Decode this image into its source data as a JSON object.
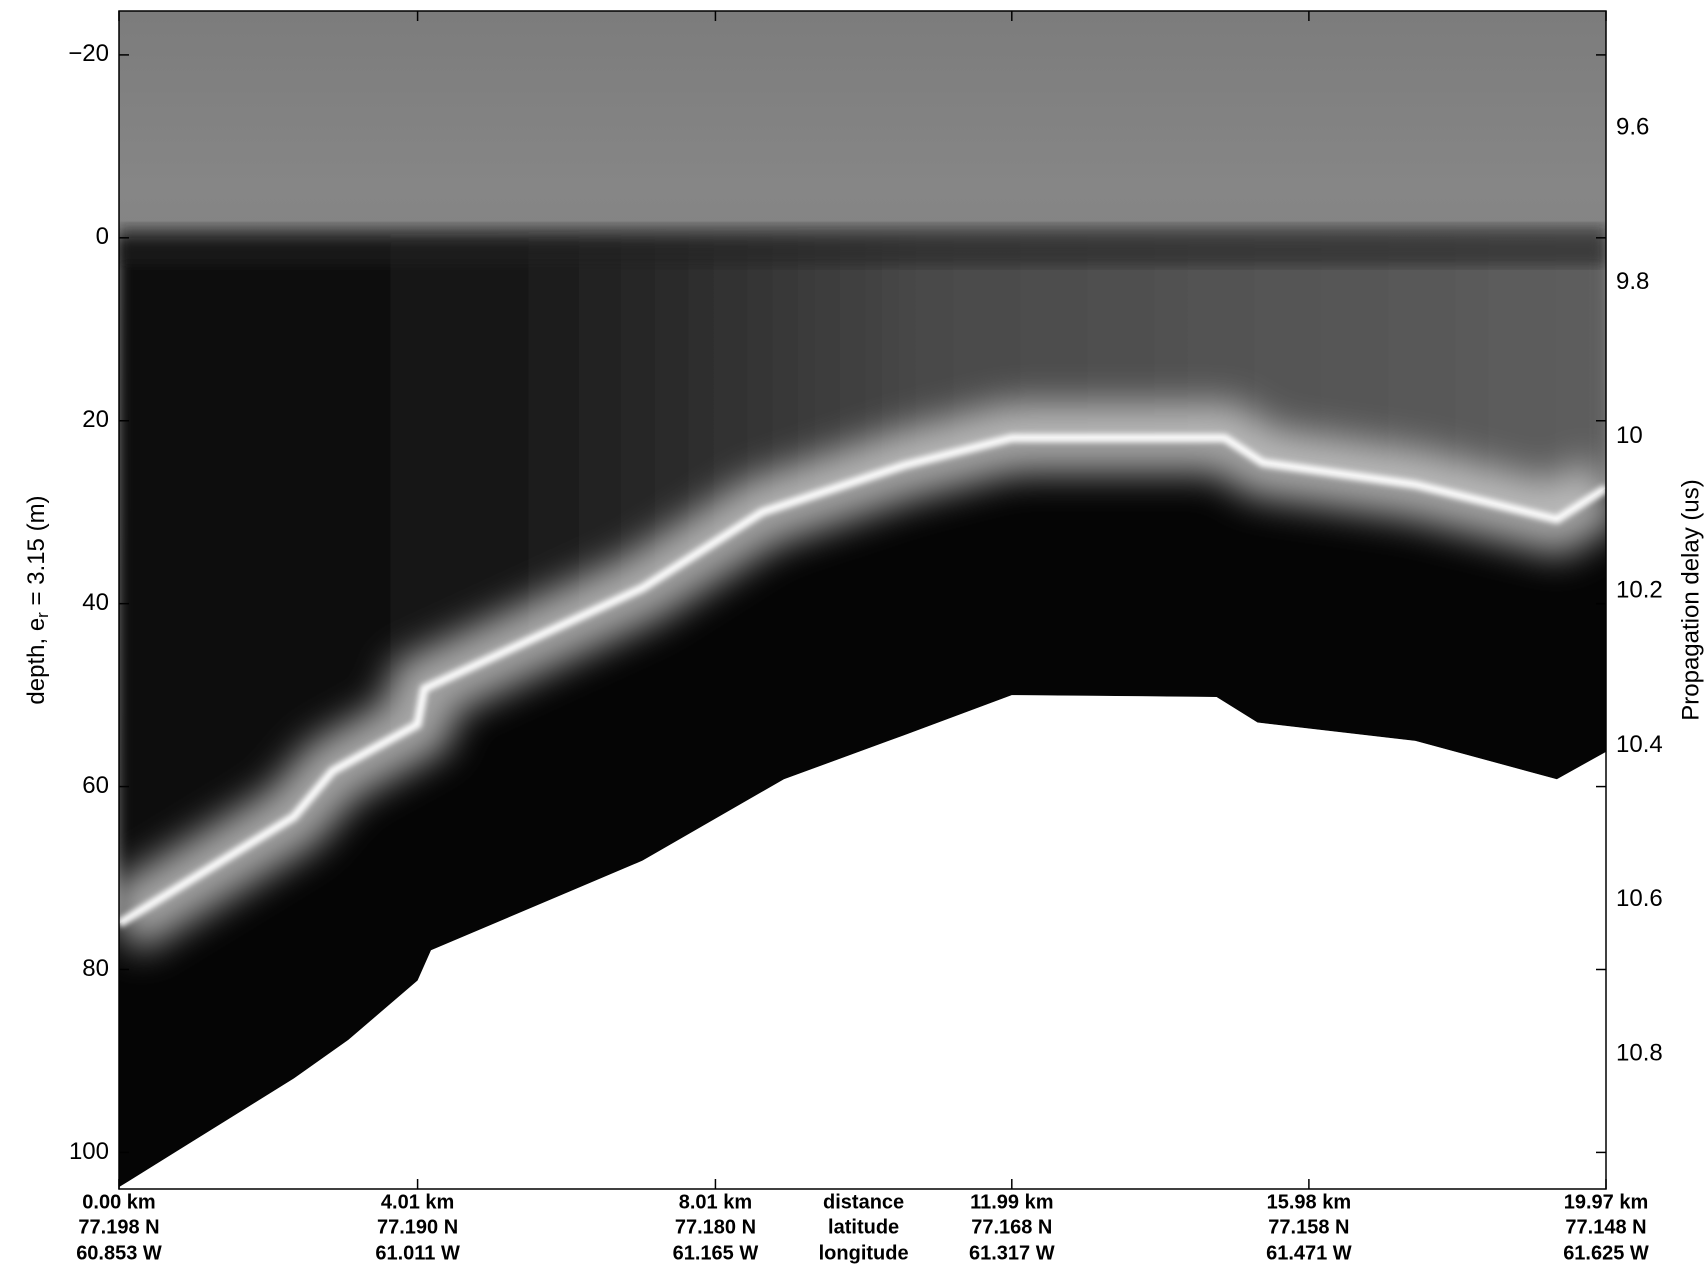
{
  "chart_data": {
    "type": "echogram",
    "ylabel": "depth, e",
    "ylabel_sub": "r",
    "ylabel_rest": " = 3.15 (m)",
    "y2label": "Propagation delay (us)",
    "row_labels": [
      "distance",
      "latitude",
      "longitude"
    ],
    "xlim": [
      0,
      19.97
    ],
    "xticks": [
      {
        "value": 0,
        "label": "0.00 km"
      },
      {
        "value": 4.01,
        "label": "4.01 km"
      },
      {
        "value": 8.01,
        "label": "8.01 km"
      },
      {
        "value": 11.99,
        "label": "11.99 km"
      },
      {
        "value": 15.98,
        "label": "15.98 km"
      },
      {
        "value": 19.97,
        "label": "19.97 km"
      }
    ],
    "latitude_labels": [
      "77.198 N",
      "77.190 N",
      "77.180 N",
      "77.168 N",
      "77.158 N",
      "77.148 N"
    ],
    "longitude_labels": [
      "60.853 W",
      "61.011 W",
      "61.165 W",
      "61.317 W",
      "61.471 W",
      "61.625 W"
    ],
    "ylim": [
      -24.8,
      104
    ],
    "yticks": [
      {
        "value": -20,
        "label": "−20"
      },
      0,
      20,
      40,
      60,
      80,
      100
    ],
    "y2lim": [
      9.448,
      10.975
    ],
    "y2ticks": [
      9.6,
      9.8,
      10,
      10.2,
      10.4,
      10.6,
      10.8
    ],
    "x": [
      0,
      2.35,
      2.87,
      4.01,
      4.1,
      7.03,
      8.64,
      10.54,
      11.99,
      14.85,
      15.36,
      17.41,
      19.31,
      19.97
    ],
    "values": [
      75,
      63.3,
      58.3,
      53.2,
      49.3,
      38.3,
      30,
      24.9,
      21.9,
      21.9,
      24.6,
      27,
      30.8,
      27.4
    ],
    "floor_x": [
      0,
      2.35,
      3.08,
      4.01,
      4.19,
      7.03,
      8.93,
      10.54,
      11.99,
      14.74,
      15.29,
      17.41,
      19.31,
      19.97
    ],
    "floor_depth": [
      103.8,
      91.9,
      87.7,
      81.2,
      77.9,
      68.1,
      59.2,
      54.4,
      50,
      50.2,
      53,
      55,
      59.2,
      56.2
    ]
  }
}
